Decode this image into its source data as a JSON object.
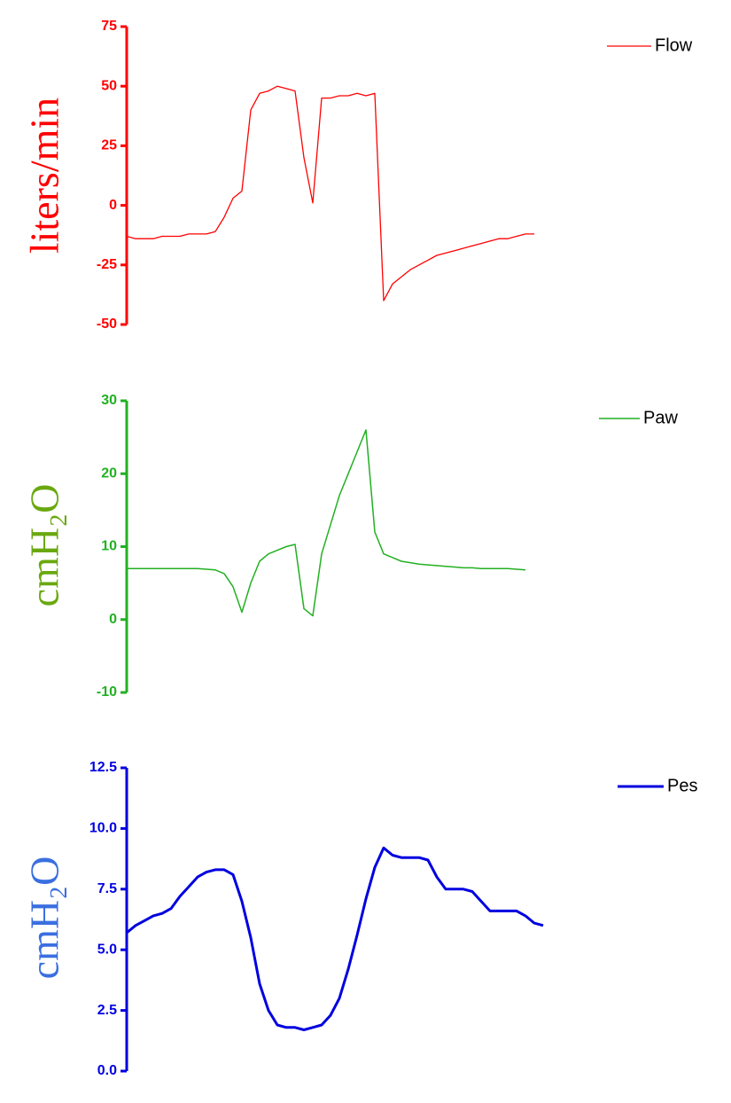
{
  "chart_data": [
    {
      "type": "line",
      "ylabel": "liters/min",
      "ylim": [
        -50,
        75
      ],
      "yticks": [
        -50,
        -25,
        0,
        25,
        50,
        75
      ],
      "legend": "top right",
      "series": [
        {
          "name": "Flow",
          "color": "#ff0000",
          "values": [
            -13,
            -14,
            -14,
            -14,
            -13,
            -13,
            -13,
            -12,
            -12,
            -12,
            -11,
            -5,
            3,
            6,
            40,
            47,
            48,
            50,
            49,
            48,
            20,
            1,
            45,
            45,
            46,
            46,
            47,
            46,
            47,
            -40,
            -33,
            -30,
            -27,
            -25,
            -23,
            -21,
            -20,
            -19,
            -18,
            -17,
            -16,
            -15,
            -14,
            -14,
            -13,
            -12,
            -12
          ]
        }
      ]
    },
    {
      "type": "line",
      "ylabel": "cmH₂O",
      "ylim": [
        -10,
        30
      ],
      "yticks": [
        -10,
        0,
        10,
        20,
        30
      ],
      "legend": "top right",
      "series": [
        {
          "name": "Paw",
          "color": "#22b022",
          "values": [
            7,
            7,
            7,
            7,
            7,
            7,
            7,
            7,
            7,
            6.9,
            6.8,
            6.3,
            4.5,
            1,
            5,
            8,
            9,
            9.5,
            10,
            10.3,
            1.5,
            0.5,
            9,
            13,
            17,
            20,
            23,
            26,
            12,
            9,
            8.5,
            8,
            7.8,
            7.6,
            7.5,
            7.4,
            7.3,
            7.2,
            7.1,
            7.1,
            7,
            7,
            7,
            7,
            6.9,
            6.8
          ]
        }
      ]
    },
    {
      "type": "line",
      "ylabel": "cmH₂O",
      "ylim": [
        0,
        12.5
      ],
      "yticks": [
        {
          "value": 0,
          "label": "0.0"
        },
        2.5,
        {
          "value": 5,
          "label": "5.0"
        },
        7.5,
        {
          "value": 10,
          "label": "10.0"
        },
        12.5
      ],
      "legend": "top right",
      "series": [
        {
          "name": "Pes",
          "color": "#0000e0",
          "values": [
            5.7,
            6,
            6.2,
            6.4,
            6.5,
            6.7,
            7.2,
            7.6,
            8,
            8.2,
            8.3,
            8.3,
            8.1,
            7,
            5.5,
            3.6,
            2.5,
            1.9,
            1.8,
            1.8,
            1.7,
            1.8,
            1.9,
            2.3,
            3,
            4.2,
            5.6,
            7.1,
            8.4,
            9.2,
            8.9,
            8.8,
            8.8,
            8.8,
            8.7,
            8,
            7.5,
            7.5,
            7.5,
            7.4,
            7,
            6.6,
            6.6,
            6.6,
            6.6,
            6.4,
            6.1,
            6
          ]
        }
      ]
    }
  ]
}
